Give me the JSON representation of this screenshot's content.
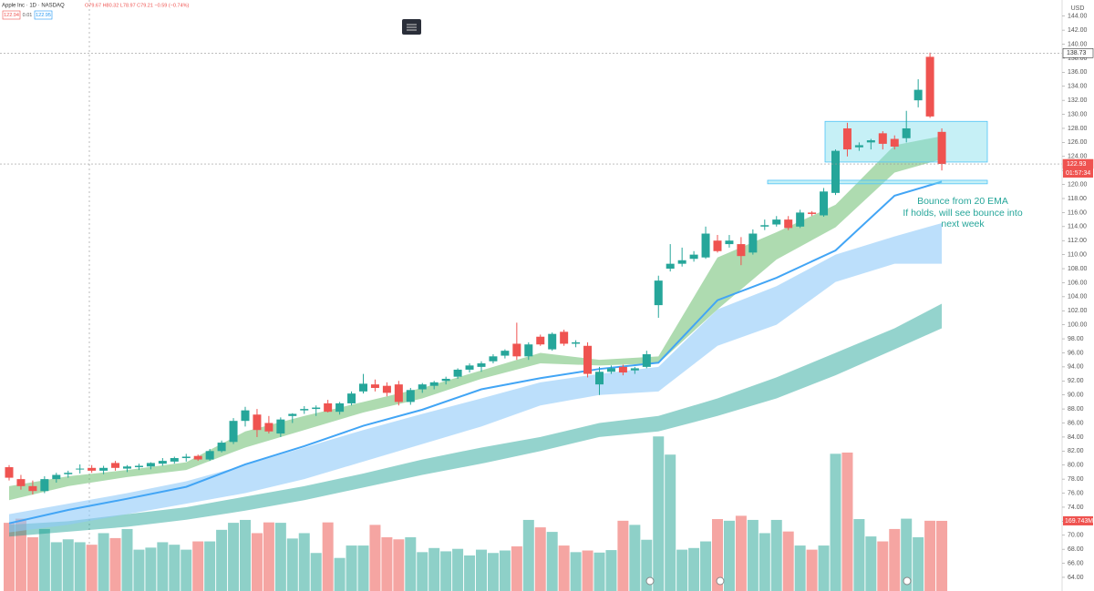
{
  "chart_data": {
    "type": "candlestick",
    "symbol": "Apple Inc · 1D · NASDAQ",
    "ohlc_readout": "O79.67 H80.32 L78.97 C79.21 −0.59 (−0.74%)",
    "bid": "122.94",
    "spread": "0.01",
    "ask": "122.95",
    "currency": "USD",
    "annotation": [
      "Bounce from 20 EMA",
      "If holds, will see bounce into",
      "next week"
    ],
    "ylim": [
      62.05,
      146.3
    ],
    "yticks": [
      {
        "value": 64,
        "label": "64.00"
      },
      {
        "value": 66,
        "label": "66.00"
      },
      {
        "value": 68,
        "label": "68.00"
      },
      {
        "value": 70,
        "label": "70.00"
      },
      {
        "value": 72,
        "label": "72.00"
      },
      {
        "value": 74,
        "label": "74.00"
      },
      {
        "value": 76,
        "label": "76.00"
      },
      {
        "value": 78,
        "label": "78.00"
      },
      {
        "value": 80,
        "label": "80.00"
      },
      {
        "value": 82,
        "label": "82.00"
      },
      {
        "value": 84,
        "label": "84.00"
      },
      {
        "value": 86,
        "label": "86.00"
      },
      {
        "value": 88,
        "label": "88.00"
      },
      {
        "value": 90,
        "label": "90.00"
      },
      {
        "value": 92,
        "label": "92.00"
      },
      {
        "value": 94,
        "label": "94.00"
      },
      {
        "value": 96,
        "label": "96.00"
      },
      {
        "value": 98,
        "label": "98.00"
      },
      {
        "value": 100,
        "label": "100.00"
      },
      {
        "value": 102,
        "label": "102.00"
      },
      {
        "value": 104,
        "label": "104.00"
      },
      {
        "value": 106,
        "label": "106.00"
      },
      {
        "value": 108,
        "label": "108.00"
      },
      {
        "value": 110,
        "label": "110.00"
      },
      {
        "value": 112,
        "label": "112.00"
      },
      {
        "value": 114,
        "label": "114.00"
      },
      {
        "value": 116,
        "label": "116.00"
      },
      {
        "value": 118,
        "label": "118.00"
      },
      {
        "value": 120,
        "label": "120.00"
      },
      {
        "value": 122,
        "label": "122.00"
      },
      {
        "value": 124,
        "label": "124.00"
      },
      {
        "value": 126,
        "label": "126.00"
      },
      {
        "value": 128,
        "label": "128.00"
      },
      {
        "value": 130,
        "label": "130.00"
      },
      {
        "value": 132,
        "label": "132.00"
      },
      {
        "value": 134,
        "label": "134.00"
      },
      {
        "value": 136,
        "label": "136.00"
      },
      {
        "value": 138,
        "label": "138.00"
      },
      {
        "value": 140,
        "label": "140.00"
      },
      {
        "value": 142,
        "label": "142.00"
      },
      {
        "value": 144,
        "label": "144.00"
      }
    ],
    "up_color": "#26a69a",
    "down_color": "#ef5350",
    "candles": {
      "open": [
        79.7,
        78.0,
        77.0,
        76.3,
        78.0,
        78.7,
        79.4,
        79.6,
        79.2,
        80.3,
        79.5,
        79.7,
        79.8,
        80.2,
        80.5,
        81.0,
        81.3,
        80.8,
        82.0,
        83.3,
        86.3,
        87.2,
        86.0,
        84.5,
        87.0,
        87.8,
        88.0,
        88.8,
        87.6,
        88.8,
        90.5,
        91.5,
        91.3,
        91.5,
        89.0,
        90.8,
        91.3,
        92.0,
        92.6,
        93.6,
        94.0,
        94.8,
        95.6,
        97.3,
        95.5,
        98.3,
        96.5,
        99.0,
        97.3,
        97.0,
        91.5,
        93.3,
        94.0,
        93.5,
        94.0,
        102.8,
        108.0,
        108.7,
        109.4,
        109.6,
        112.0,
        111.5,
        111.5,
        110.3,
        114.0,
        114.3,
        115.0,
        114.0,
        116.0,
        115.6,
        118.8,
        128.0,
        125.3,
        126.0,
        127.3,
        126.5,
        126.6,
        132.0,
        138.2,
        127.5
      ],
      "high": [
        80.0,
        78.6,
        77.8,
        78.4,
        78.9,
        79.2,
        80.1,
        80.0,
        79.9,
        80.6,
        80.0,
        80.2,
        80.4,
        81.0,
        81.2,
        81.6,
        81.5,
        82.3,
        83.5,
        86.7,
        88.3,
        88.0,
        87.0,
        86.8,
        87.4,
        88.4,
        88.5,
        89.3,
        89.0,
        90.5,
        93.0,
        92.2,
        91.8,
        92.0,
        91.0,
        91.7,
        92.0,
        92.6,
        93.8,
        94.5,
        94.8,
        95.8,
        96.5,
        100.3,
        97.5,
        98.6,
        98.9,
        99.3,
        97.8,
        97.5,
        94.0,
        94.2,
        94.3,
        94.0,
        96.3,
        107.0,
        111.5,
        111.0,
        110.5,
        114.0,
        112.8,
        112.8,
        112.5,
        113.6,
        115.0,
        115.5,
        115.5,
        116.4,
        116.2,
        119.5,
        125.0,
        128.8,
        126.0,
        126.5,
        127.6,
        127.0,
        130.5,
        135.0,
        138.8,
        128.0
      ],
      "low": [
        77.8,
        76.5,
        75.8,
        76.0,
        77.5,
        78.2,
        78.8,
        78.9,
        78.7,
        79.2,
        79.0,
        79.3,
        79.4,
        79.9,
        80.2,
        80.5,
        80.6,
        80.6,
        81.8,
        83.0,
        85.5,
        84.0,
        84.5,
        84.0,
        86.0,
        87.3,
        87.0,
        87.5,
        87.2,
        88.5,
        90.2,
        90.5,
        89.8,
        88.5,
        88.6,
        90.3,
        90.8,
        91.5,
        92.3,
        93.2,
        93.3,
        94.5,
        95.2,
        95.0,
        95.0,
        97.0,
        96.3,
        97.0,
        96.8,
        92.5,
        90.0,
        93.0,
        92.8,
        93.0,
        93.8,
        101.0,
        107.6,
        108.3,
        109.0,
        109.4,
        110.3,
        111.0,
        108.5,
        110.0,
        113.5,
        114.0,
        113.5,
        113.8,
        115.5,
        115.4,
        118.5,
        124.0,
        124.8,
        125.0,
        125.0,
        125.0,
        126.0,
        131.0,
        129.5,
        122.0
      ],
      "close": [
        78.2,
        77.0,
        76.3,
        78.0,
        78.6,
        78.9,
        79.5,
        79.2,
        79.6,
        79.6,
        79.8,
        79.9,
        80.3,
        80.6,
        81.0,
        81.2,
        80.8,
        82.0,
        83.2,
        86.3,
        87.8,
        85.0,
        84.8,
        86.5,
        87.3,
        88.0,
        88.2,
        87.6,
        88.8,
        90.2,
        91.6,
        91.0,
        90.3,
        89.0,
        90.7,
        91.5,
        91.8,
        92.3,
        93.6,
        94.2,
        94.5,
        95.5,
        96.3,
        95.5,
        97.2,
        97.2,
        98.7,
        97.3,
        97.5,
        93.0,
        93.3,
        93.8,
        93.2,
        93.8,
        95.8,
        106.3,
        108.7,
        109.2,
        110.0,
        113.0,
        110.5,
        112.0,
        109.8,
        113.0,
        114.2,
        115.0,
        113.8,
        116.0,
        115.8,
        119.0,
        124.8,
        125.0,
        125.6,
        126.3,
        125.8,
        125.4,
        128.0,
        133.5,
        129.7,
        122.93
      ]
    },
    "volume": {
      "values": [
        165,
        175,
        130,
        150,
        118,
        125,
        118,
        112,
        140,
        128,
        150,
        100,
        105,
        118,
        112,
        100,
        120,
        120,
        148,
        165,
        172,
        140,
        166,
        165,
        127,
        140,
        92,
        166,
        80,
        110,
        110,
        160,
        130,
        125,
        130,
        94,
        104,
        96,
        102,
        86,
        100,
        92,
        98,
        108,
        172,
        154,
        143,
        110,
        94,
        98,
        93,
        99,
        170,
        160,
        124,
        374,
        330,
        100,
        104,
        120,
        174,
        170,
        182,
        172,
        140,
        172,
        144,
        110,
        100,
        110,
        332,
        335,
        174,
        132,
        120,
        150,
        175,
        130,
        170,
        169.743
      ],
      "lim": [
        0,
        1430
      ],
      "last_label": "169.743M",
      "up_color": "#8ed0c8",
      "down_color": "#f5a5a2"
    },
    "bands": [
      {
        "color": "rgba(0,150,136,0.42)",
        "x": [
          0,
          5,
          10,
          15,
          20,
          25,
          30,
          35,
          40,
          45,
          50,
          55,
          60,
          65,
          70,
          75,
          79
        ],
        "upper": [
          71.5,
          72.0,
          73.0,
          74.0,
          75.5,
          77.0,
          78.8,
          80.8,
          82.5,
          84.0,
          86.0,
          87.0,
          89.5,
          92.5,
          96.0,
          99.5,
          103.0
        ],
        "lower": [
          69.8,
          70.5,
          71.2,
          72.2,
          73.5,
          75.0,
          76.8,
          78.6,
          80.2,
          82.0,
          84.0,
          84.8,
          87.0,
          89.5,
          92.8,
          96.5,
          99.5
        ]
      },
      {
        "color": "rgba(144,202,249,0.6)",
        "x": [
          0,
          5,
          10,
          15,
          20,
          25,
          30,
          35,
          40,
          45,
          50,
          55,
          60,
          65,
          70,
          75,
          79
        ],
        "upper": [
          73.0,
          74.5,
          76.0,
          77.7,
          80.0,
          82.5,
          85.0,
          87.3,
          89.5,
          91.8,
          93.0,
          94.0,
          102.2,
          105.5,
          110.0,
          112.6,
          114.5
        ],
        "lower": [
          70.4,
          71.5,
          73.0,
          74.5,
          76.0,
          78.0,
          80.5,
          83.0,
          85.5,
          88.5,
          90.0,
          90.5,
          97.0,
          100.0,
          106.1,
          108.7,
          108.7
        ]
      },
      {
        "color": "rgba(76,175,80,0.45)",
        "x": [
          0,
          5,
          10,
          15,
          20,
          25,
          30,
          35,
          40,
          45,
          50,
          55,
          60,
          65,
          70,
          75,
          79
        ],
        "upper": [
          77.0,
          78.4,
          79.3,
          80.4,
          84.8,
          87.0,
          89.0,
          91.0,
          93.5,
          96.0,
          95.0,
          95.5,
          109.6,
          113.2,
          117.1,
          125.6,
          126.9
        ],
        "lower": [
          75.0,
          77.0,
          78.3,
          79.3,
          82.5,
          85.0,
          87.5,
          89.5,
          92.3,
          94.5,
          94.2,
          94.5,
          102.2,
          109.3,
          113.9,
          121.7,
          123.6
        ]
      }
    ],
    "ema": {
      "color": "#42a5f5",
      "x": [
        0,
        5,
        10,
        15,
        20,
        25,
        30,
        35,
        40,
        45,
        50,
        55,
        60,
        65,
        70,
        75,
        79
      ],
      "values": [
        71.7,
        73.6,
        75.2,
        76.9,
        80.1,
        82.7,
        85.6,
        87.9,
        90.8,
        92.4,
        93.7,
        94.6,
        103.5,
        106.7,
        110.6,
        118.4,
        120.4
      ]
    },
    "zones": [
      {
        "top": 129.0,
        "bottom": 123.2
      },
      {
        "top": 120.6,
        "bottom": 120.1
      }
    ],
    "price_lines": [
      {
        "value": 138.73,
        "label": "138.73"
      },
      {
        "value": 122.93,
        "label": "122.93"
      }
    ],
    "countdown": "01:57:34"
  }
}
